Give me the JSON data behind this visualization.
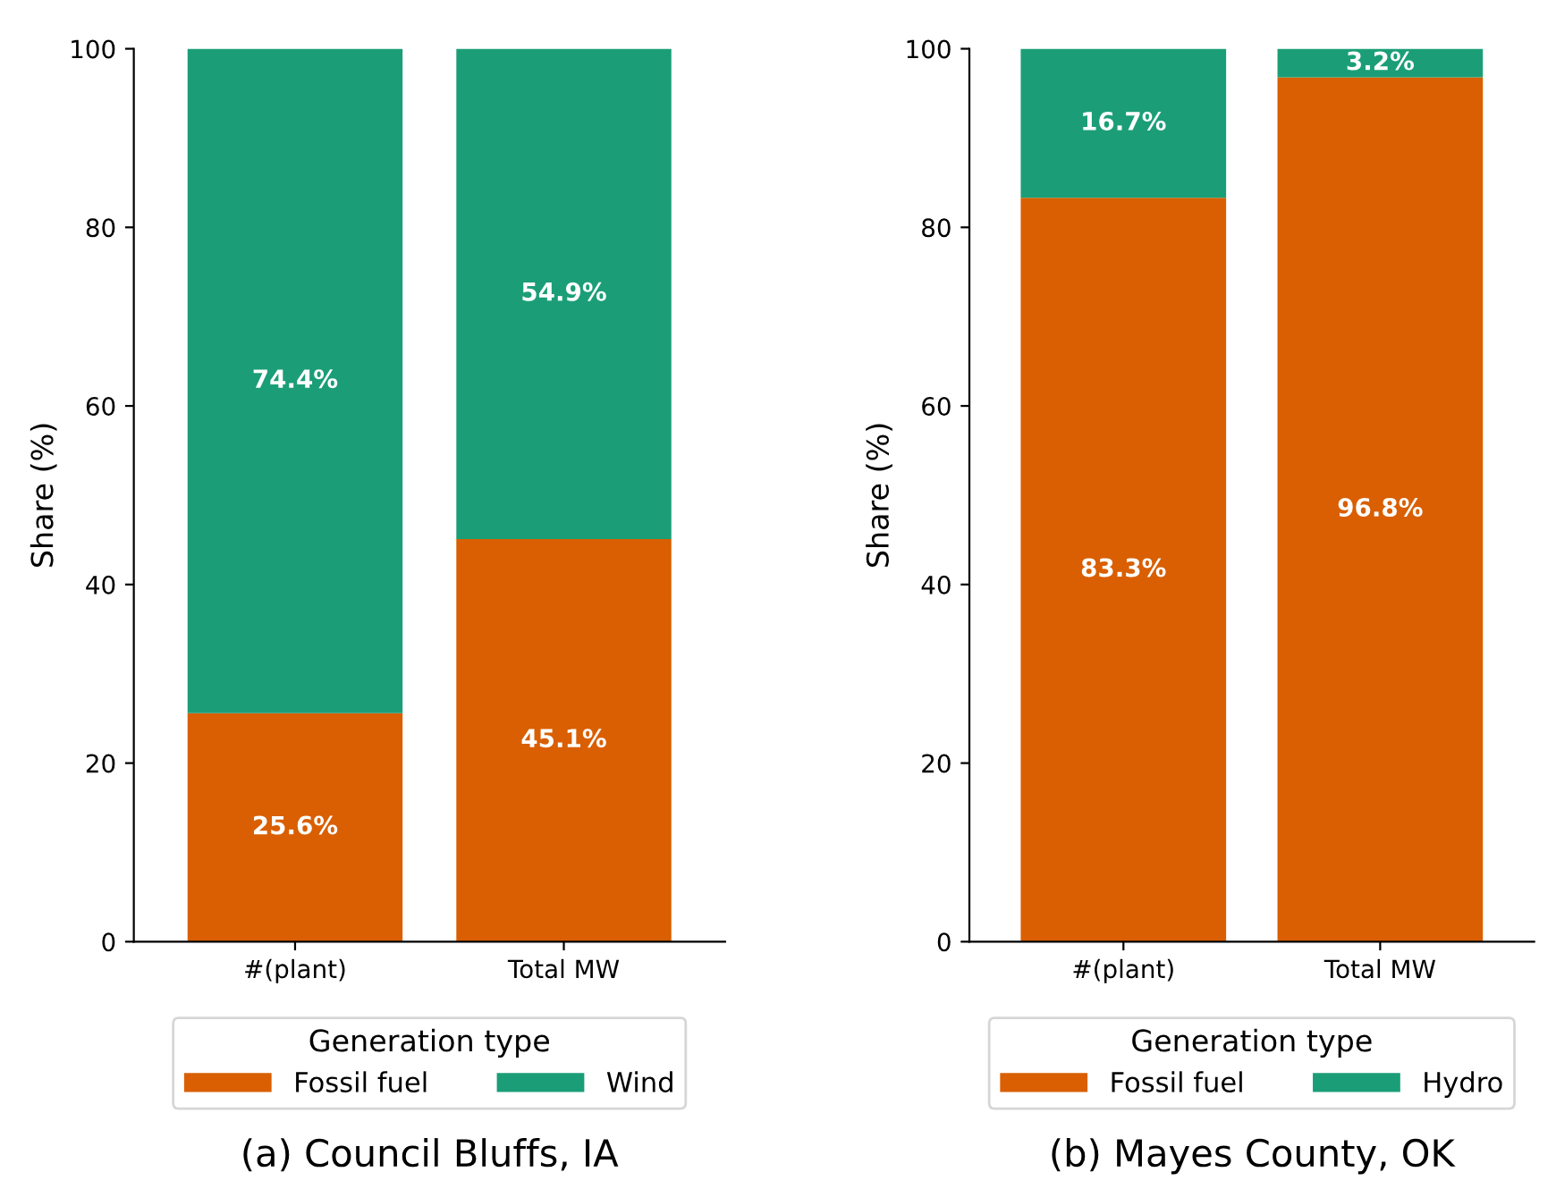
{
  "chart_data": [
    {
      "type": "bar",
      "stacked": true,
      "title": "(a) Council Bluffs, IA",
      "ylabel": "Share (%)",
      "legend_title": "Generation type",
      "legend": "bottom",
      "categories": [
        "#(plant)",
        "Total MW"
      ],
      "ylim": [
        0,
        100
      ],
      "yticks": [
        0,
        20,
        40,
        60,
        80,
        100
      ],
      "series": [
        {
          "name": "Fossil fuel",
          "color": "#d95f02",
          "values": [
            25.6,
            45.1
          ],
          "value_labels": [
            "25.6%",
            "45.1%"
          ]
        },
        {
          "name": "Wind",
          "color": "#1b9e77",
          "values": [
            74.4,
            54.9
          ],
          "value_labels": [
            "74.4%",
            "54.9%"
          ]
        }
      ]
    },
    {
      "type": "bar",
      "stacked": true,
      "title": "(b) Mayes County, OK",
      "ylabel": "Share (%)",
      "legend_title": "Generation type",
      "legend": "bottom",
      "categories": [
        "#(plant)",
        "Total MW"
      ],
      "ylim": [
        0,
        100
      ],
      "yticks": [
        0,
        20,
        40,
        60,
        80,
        100
      ],
      "series": [
        {
          "name": "Fossil fuel",
          "color": "#d95f02",
          "values": [
            83.3,
            96.8
          ],
          "value_labels": [
            "83.3%",
            "96.8%"
          ]
        },
        {
          "name": "Hydro",
          "color": "#1b9e77",
          "values": [
            16.7,
            3.2
          ],
          "value_labels": [
            "16.7%",
            "3.2%"
          ]
        }
      ]
    }
  ]
}
